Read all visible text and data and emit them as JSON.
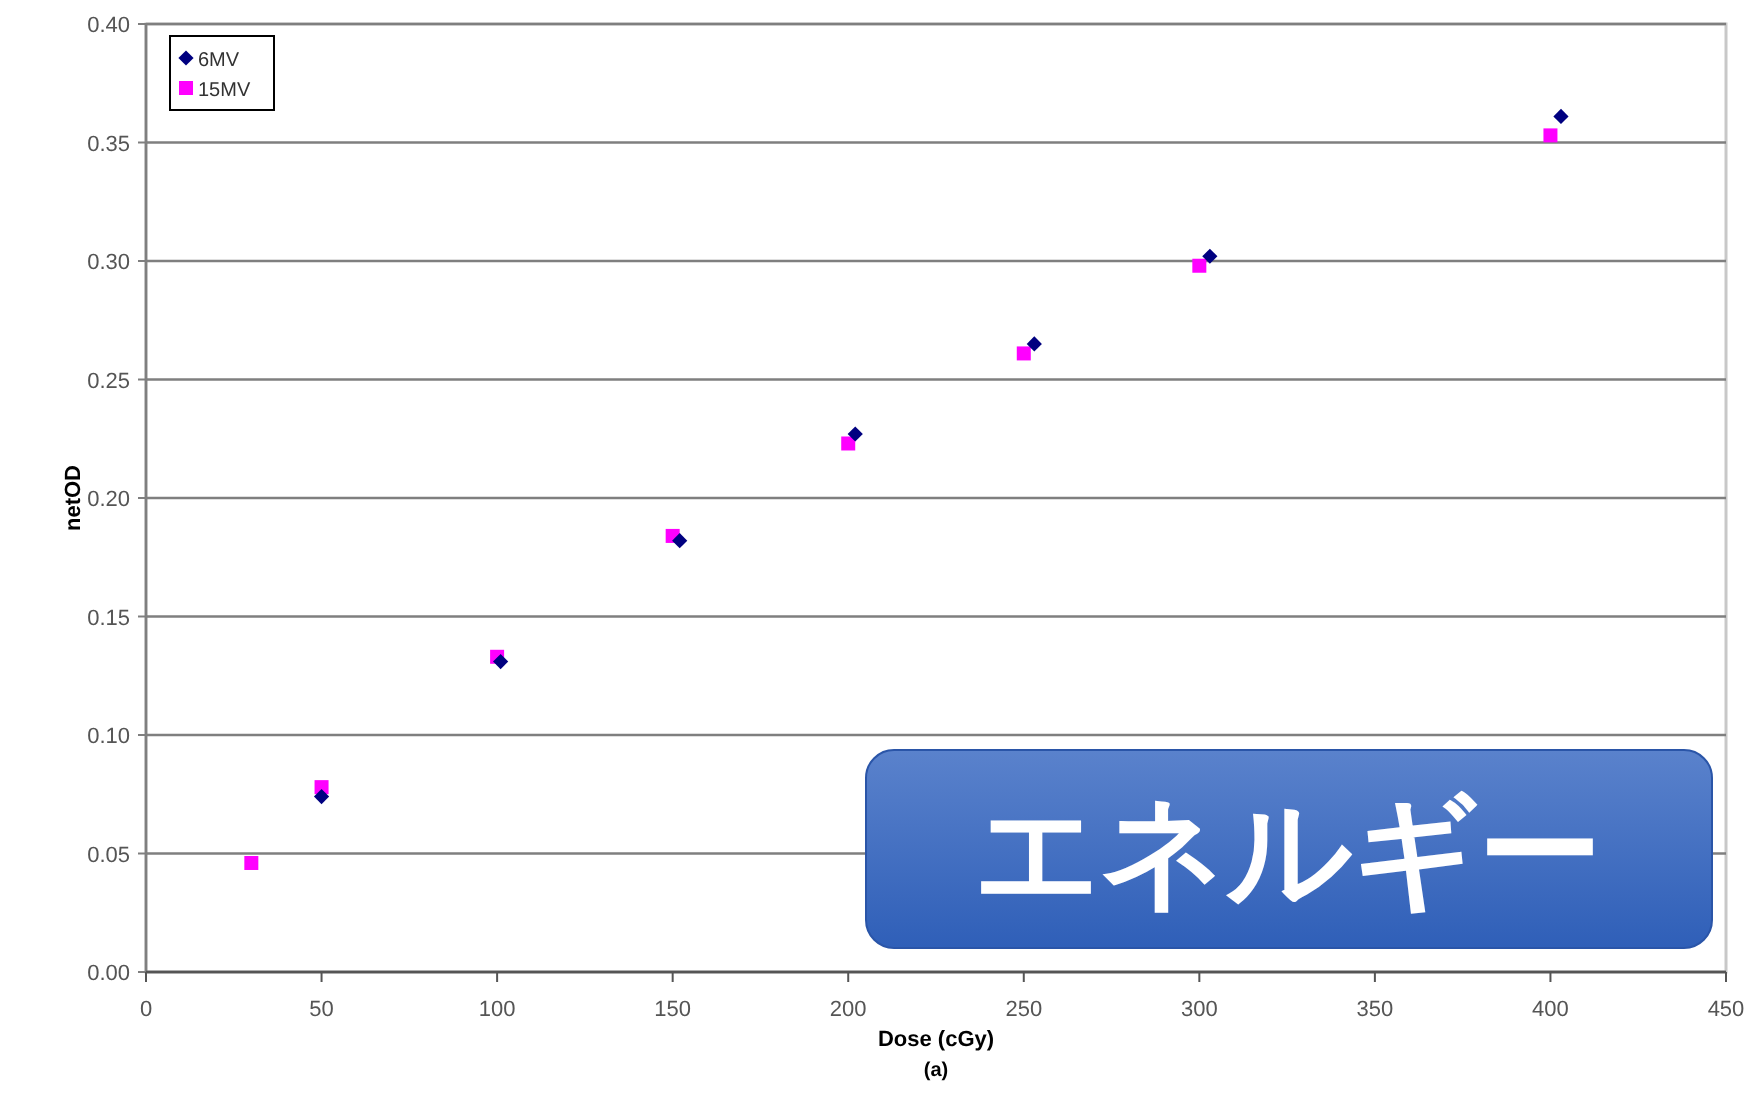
{
  "chart_data": {
    "type": "scatter",
    "xlabel": "Dose (cGy)",
    "ylabel": "netOD",
    "annotations": [
      "(a)",
      "エネルギー"
    ],
    "xlim": [
      0,
      450
    ],
    "xticks": [
      0,
      50,
      100,
      150,
      200,
      250,
      300,
      350,
      400,
      450
    ],
    "ylim": [
      0,
      0.4
    ],
    "yticks": [
      {
        "value": 0,
        "label": "0.00"
      },
      {
        "value": 0.05,
        "label": "0.05"
      },
      {
        "value": 0.1,
        "label": "0.10"
      },
      {
        "value": 0.15,
        "label": "0.15"
      },
      {
        "value": 0.2,
        "label": "0.20"
      },
      {
        "value": 0.25,
        "label": "0.25"
      },
      {
        "value": 0.3,
        "label": "0.30"
      },
      {
        "value": 0.35,
        "label": "0.35"
      },
      {
        "value": 0.4,
        "label": "0.40"
      }
    ],
    "grid": "y",
    "legend": "top left",
    "series": [
      {
        "name": "6MV",
        "color": "#000080",
        "marker": "diamond",
        "x": [
          50,
          101,
          152,
          202,
          253,
          303,
          403
        ],
        "values": [
          0.074,
          0.131,
          0.182,
          0.227,
          0.265,
          0.302,
          0.361
        ]
      },
      {
        "name": "15MV",
        "color": "#ff00ff",
        "marker": "square",
        "x": [
          30,
          50,
          100,
          150,
          200,
          250,
          300,
          400
        ],
        "values": [
          0.046,
          0.078,
          0.133,
          0.184,
          0.223,
          0.261,
          0.298,
          0.353
        ]
      }
    ]
  }
}
